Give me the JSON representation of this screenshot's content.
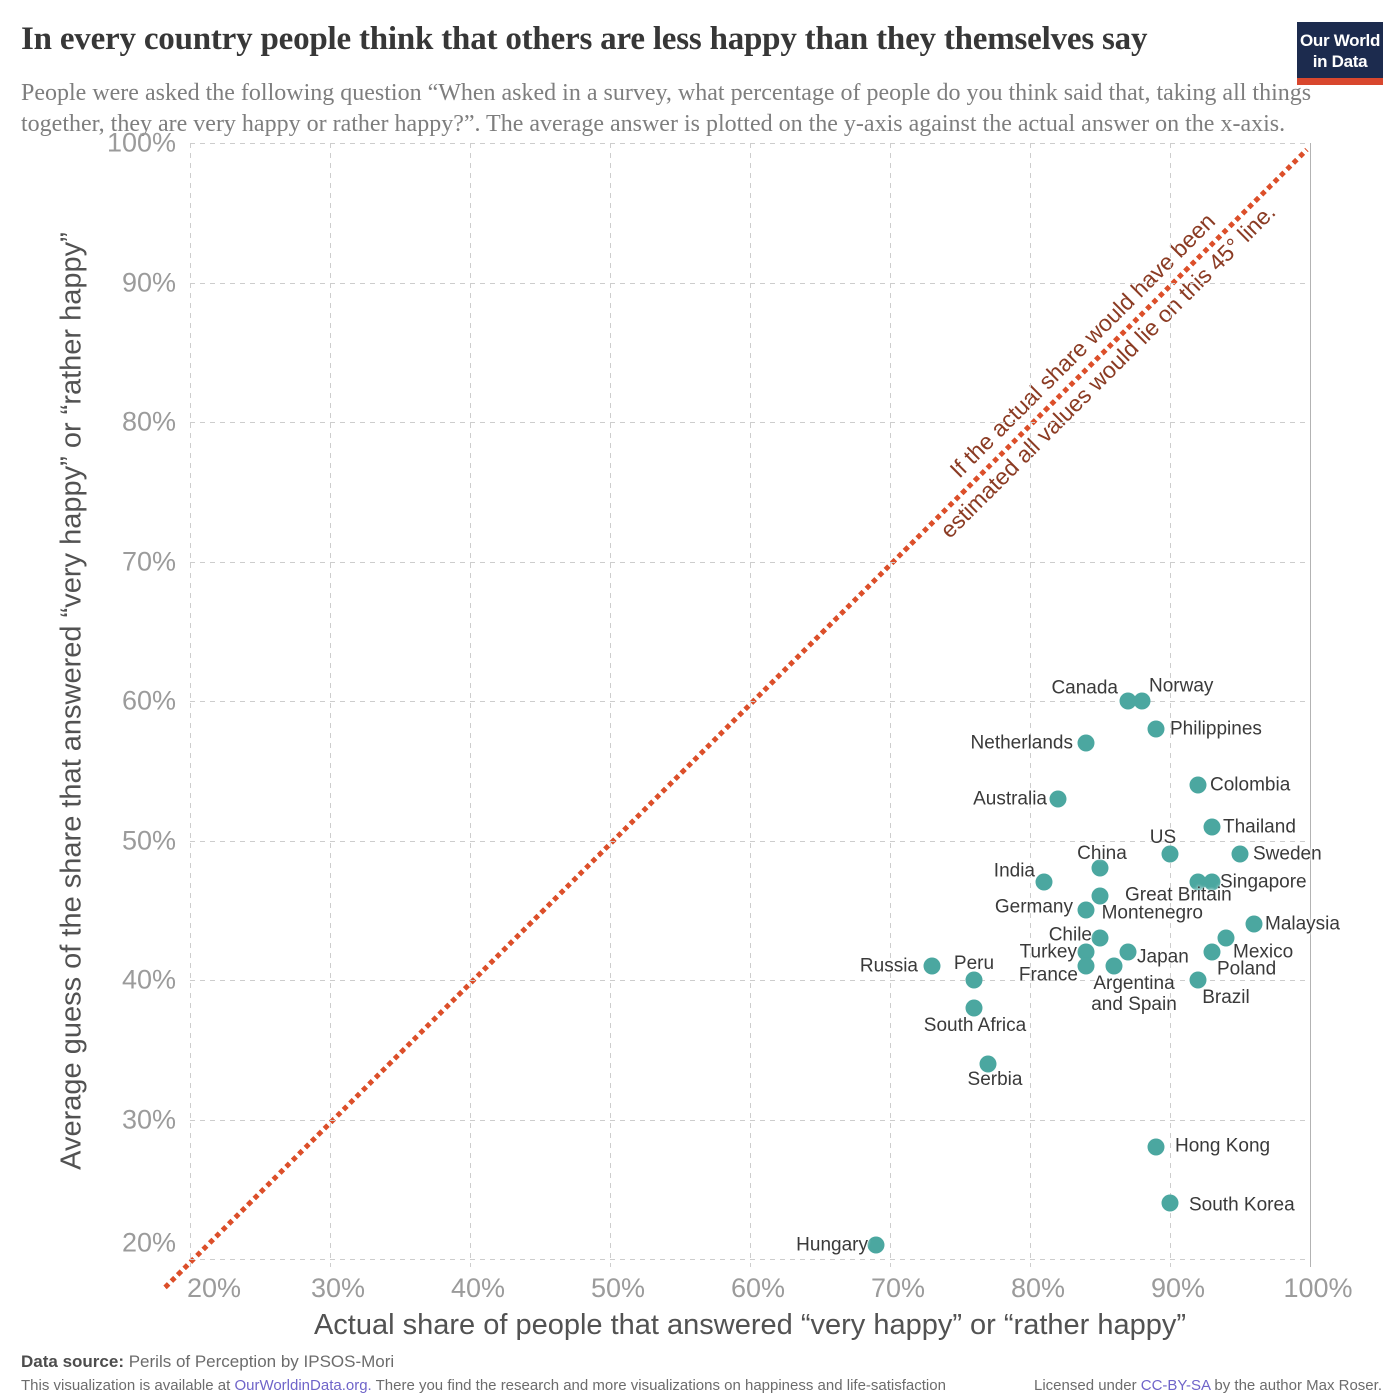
{
  "header": {
    "title": "In every country people think that others are less happy than they themselves say",
    "subtitle": "People were asked the following question “When asked in a survey, what percentage of people do you think said that, taking all things together, they are very happy or rather happy?”. The average answer is plotted on the y-axis against the actual answer on the x-axis.",
    "logo": {
      "line1": "Our World",
      "line2": "in Data",
      "bg_color": "#1c2b4e",
      "bar_color": "#d8472e"
    }
  },
  "chart_data": {
    "type": "scatter",
    "title": "In every country people think that others are less happy than they themselves say",
    "xlabel": "Actual share of people that answered “very happy” or “rather happy”",
    "ylabel": "Average guess of the share that answered “very happy” or “rather happy”",
    "xlim": [
      20,
      100
    ],
    "ylim": [
      20,
      100
    ],
    "grid": true,
    "ticks": {
      "values": [
        20,
        30,
        40,
        50,
        60,
        70,
        80,
        90,
        100
      ],
      "labels": [
        "20%",
        "30%",
        "40%",
        "50%",
        "60%",
        "70%",
        "80%",
        "90%",
        "100%"
      ]
    },
    "annotation": {
      "line1": "If the actual share would have been",
      "line2": "estimated all values would lie on this 45° line."
    },
    "colors": {
      "dot": "#4ba7a0",
      "diagonal": "#dc4f2a",
      "annotation_text": "#8b3b23",
      "gridline": "#cdcdcd"
    },
    "points": [
      {
        "country": "Norway",
        "actual": 88,
        "guess": 60,
        "side": "right",
        "nudge": [
          -6,
          -15
        ]
      },
      {
        "country": "Canada",
        "actual": 87,
        "guess": 60,
        "side": "left",
        "nudge": [
          3,
          -13
        ]
      },
      {
        "country": "Philippines",
        "actual": 89,
        "guess": 58,
        "side": "right",
        "nudge": [
          1,
          0
        ]
      },
      {
        "country": "Netherlands",
        "actual": 84,
        "guess": 57,
        "side": "left",
        "nudge": [
          0,
          0
        ]
      },
      {
        "country": "Colombia",
        "actual": 92,
        "guess": 54,
        "side": "right",
        "nudge": [
          -1,
          0
        ]
      },
      {
        "country": "Australia",
        "actual": 82,
        "guess": 53,
        "side": "left",
        "nudge": [
          2,
          0
        ]
      },
      {
        "country": "Thailand",
        "actual": 93,
        "guess": 51,
        "side": "right",
        "nudge": [
          -2,
          0
        ]
      },
      {
        "country": "US",
        "actual": 90,
        "guess": 49,
        "side": "above",
        "nudge": [
          -7,
          6
        ]
      },
      {
        "country": "Sweden",
        "actual": 95,
        "guess": 49,
        "side": "right",
        "nudge": [
          0,
          0
        ]
      },
      {
        "country": "China",
        "actual": 85,
        "guess": 48,
        "side": "above",
        "nudge": [
          2,
          8
        ]
      },
      {
        "country": "India",
        "actual": 81,
        "guess": 47,
        "side": "left",
        "nudge": [
          4,
          -11
        ]
      },
      {
        "country": "Montenegro",
        "actual": 92,
        "guess": 47,
        "side": "left",
        "nudge": [
          18,
          31
        ]
      },
      {
        "country": "Singapore",
        "actual": 93,
        "guess": 47,
        "side": "right",
        "nudge": [
          -5,
          0
        ]
      },
      {
        "country": "Great Britain",
        "actual": 85,
        "guess": 46,
        "side": "right",
        "nudge": [
          12,
          -1
        ]
      },
      {
        "country": "Germany",
        "actual": 84,
        "guess": 45,
        "side": "left",
        "nudge": [
          0,
          -3
        ]
      },
      {
        "country": "Malaysia",
        "actual": 96,
        "guess": 44,
        "side": "right",
        "nudge": [
          -2,
          0
        ]
      },
      {
        "country": "Chile",
        "actual": 85,
        "guess": 43,
        "side": "left",
        "nudge": [
          5,
          -3
        ]
      },
      {
        "country": "Mexico",
        "actual": 94,
        "guess": 43,
        "side": "right",
        "nudge": [
          -6,
          14
        ]
      },
      {
        "country": "Turkey",
        "actual": 84,
        "guess": 42,
        "side": "left",
        "nudge": [
          4,
          0
        ]
      },
      {
        "country": "Japan",
        "actual": 87,
        "guess": 42,
        "side": "right",
        "nudge": [
          -4,
          5
        ]
      },
      {
        "country": "Poland",
        "actual": 93,
        "guess": 42,
        "side": "right",
        "nudge": [
          -8,
          17
        ]
      },
      {
        "country": "France",
        "actual": 84,
        "guess": 41,
        "side": "left",
        "nudge": [
          5,
          9
        ]
      },
      {
        "country": "Argentina and Spain",
        "actual": 86,
        "guess": 41,
        "side": "below",
        "nudge": [
          20,
          -5
        ],
        "label": "Argentina\nand Spain"
      },
      {
        "country": "Russia",
        "actual": 73,
        "guess": 41,
        "side": "left",
        "nudge": [
          -1,
          0
        ]
      },
      {
        "country": "Peru",
        "actual": 76,
        "guess": 40,
        "side": "above",
        "nudge": [
          0,
          6
        ]
      },
      {
        "country": "Brazil",
        "actual": 92,
        "guess": 40,
        "side": "below",
        "nudge": [
          28,
          -5
        ]
      },
      {
        "country": "South Africa",
        "actual": 76,
        "guess": 38,
        "side": "below",
        "nudge": [
          1,
          -5
        ]
      },
      {
        "country": "Serbia",
        "actual": 77,
        "guess": 34,
        "side": "below",
        "nudge": [
          7,
          -7
        ]
      },
      {
        "country": "Hong Kong",
        "actual": 89,
        "guess": 28,
        "side": "right",
        "nudge": [
          6,
          -1
        ]
      },
      {
        "country": "South Korea",
        "actual": 90,
        "guess": 24,
        "side": "right",
        "nudge": [
          6,
          2
        ]
      },
      {
        "country": "Hungary",
        "actual": 69,
        "guess": 21,
        "side": "left",
        "nudge": [
          5,
          0
        ]
      }
    ]
  },
  "footer": {
    "source_label": "Data source:",
    "source_value": " Perils of Perception by IPSOS-Mori",
    "note_pre": "This visualization is available at ",
    "note_link": "OurWorldinData.org.",
    "note_post": " There you find the research and more visualizations on happiness and life-satisfaction",
    "license_pre": "Licensed under ",
    "license_link": "CC-BY-SA",
    "license_post": " by the author Max Roser.",
    "link_color": "#6f64c9"
  }
}
